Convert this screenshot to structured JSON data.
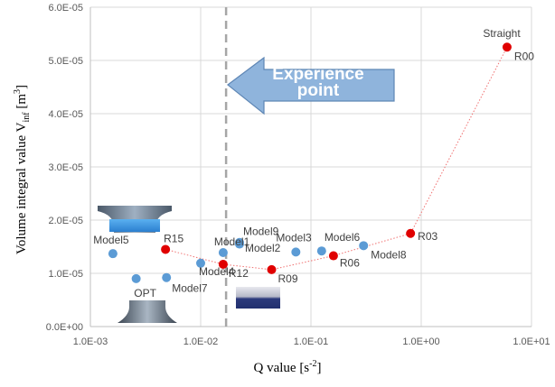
{
  "chart_data": {
    "type": "scatter",
    "xscale": "log",
    "xlim": [
      0.001,
      10
    ],
    "ylim": [
      0,
      6e-05
    ],
    "xlabel": "Q value [s",
    "xlabel_sup": "-2",
    "xlabel_tail": "]",
    "ylabel": "Volume integral value V",
    "ylabel_sub": "inf",
    "ylabel_tail": " [m",
    "ylabel_sup": "3",
    "ylabel_end": "]",
    "x_ticks": [
      "1.0E-03",
      "1.0E-02",
      "1.0E-01",
      "1.0E+00",
      "1.0E+01"
    ],
    "y_ticks": [
      "0.0E+00",
      "1.0E-05",
      "2.0E-05",
      "3.0E-05",
      "4.0E-05",
      "5.0E-05",
      "6.0E-05"
    ],
    "grid": true,
    "series": [
      {
        "color": "#e00000",
        "connected": true,
        "points": [
          {
            "label": "R15",
            "x": 0.0048,
            "y": 1.45e-05
          },
          {
            "label": "R12",
            "x": 0.016,
            "y": 1.17e-05
          },
          {
            "label": "R09",
            "x": 0.044,
            "y": 1.07e-05
          },
          {
            "label": "R06",
            "x": 0.16,
            "y": 1.33e-05
          },
          {
            "label": "R03",
            "x": 0.8,
            "y": 1.75e-05
          },
          {
            "label": "R00",
            "x": 6.0,
            "y": 5.25e-05
          }
        ]
      },
      {
        "color": "#5b9bd5",
        "connected": false,
        "points": [
          {
            "label": "Model5",
            "x": 0.0016,
            "y": 1.37e-05
          },
          {
            "label": "OPT",
            "x": 0.0026,
            "y": 9e-06
          },
          {
            "label": "Model7",
            "x": 0.0049,
            "y": 9.2e-06
          },
          {
            "label": "Model4",
            "x": 0.01,
            "y": 1.19e-05
          },
          {
            "label": "Model1",
            "x": 0.016,
            "y": 1.39e-05
          },
          {
            "label": "Model9",
            "x": 0.0225,
            "y": 1.55e-05
          },
          {
            "label": "Model2",
            "x": 0.0225,
            "y": 1.58e-05
          },
          {
            "label": "Model3",
            "x": 0.073,
            "y": 1.4e-05
          },
          {
            "label": "Model6",
            "x": 0.125,
            "y": 1.42e-05
          },
          {
            "label": "Model8",
            "x": 0.3,
            "y": 1.52e-05
          }
        ]
      }
    ],
    "annotations": {
      "straight": "Straight",
      "experience_line1": "Experience",
      "experience_line2": "point",
      "experience_x": 0.017
    },
    "colors": {
      "arrow_fill": "#8fb4dc",
      "arrow_stroke": "#5e86b5",
      "dash_line": "#a6a6a6",
      "grid": "#d9d9d9"
    }
  }
}
